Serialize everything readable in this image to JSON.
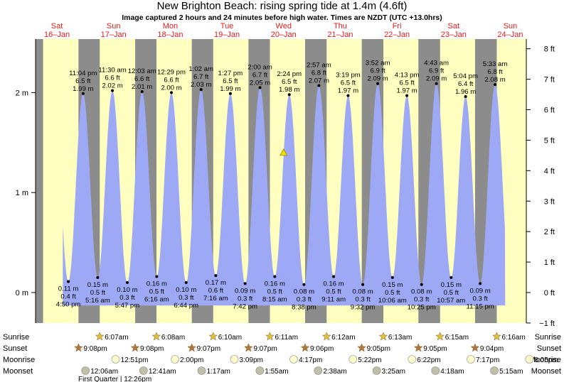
{
  "title": "New Brighton Beach: rising  spring tide at 1.4m (4.6ft)",
  "subtitle": "Image captured 2 hours and 24 minutes before high water. Times are NZDT (UTC +13.0hrs)",
  "colors": {
    "day": "#ffffc0",
    "night": "#8c8c8c",
    "tide": "#9ea9f5",
    "sun_star": "#e0c040",
    "set_star": "#b07840",
    "moon_circle_light": "#ffffd0",
    "moon_circle_dark": "#c0c0a8",
    "day_label": "#e0201e"
  },
  "days": [
    {
      "name": "Sat",
      "date": "16–Jan"
    },
    {
      "name": "Sun",
      "date": "17–Jan"
    },
    {
      "name": "Mon",
      "date": "18–Jan"
    },
    {
      "name": "Tue",
      "date": "19–Jan"
    },
    {
      "name": "Wed",
      "date": "20–Jan"
    },
    {
      "name": "Thu",
      "date": "21–Jan"
    },
    {
      "name": "Fri",
      "date": "22–Jan"
    },
    {
      "name": "Sat",
      "date": "23–Jan"
    },
    {
      "name": "Sun",
      "date": "24–Jan"
    }
  ],
  "chart_data": {
    "type": "area",
    "left_axis_unit": "m",
    "right_axis_unit": "ft",
    "left_ticks": [
      "0 m",
      "1 m",
      "2 m"
    ],
    "right_ticks": [
      "−1 ft",
      "0 ft",
      "1 ft",
      "2 ft",
      "3 ft",
      "4 ft",
      "5 ft",
      "6 ft",
      "7 ft",
      "8 ft"
    ],
    "ylim_m": [
      -0.3,
      2.6
    ],
    "current_marker": {
      "label": "rising tide at 1.4m",
      "height_m": 1.4
    },
    "extremes": [
      {
        "type": "low",
        "time": "4:50 pm",
        "m": "0.11 m",
        "ft": "0.4 ft",
        "height": 0.11
      },
      {
        "type": "high",
        "time": "11:04 pm",
        "m": "1.99 m",
        "ft": "6.5 ft",
        "height": 1.99
      },
      {
        "type": "low",
        "time": "5:16 am",
        "m": "0.15 m",
        "ft": "0.5 ft",
        "height": 0.15
      },
      {
        "type": "high",
        "time": "11:30 am",
        "m": "2.02 m",
        "ft": "6.6 ft",
        "height": 2.02
      },
      {
        "type": "low",
        "time": "5:47 pm",
        "m": "0.10 m",
        "ft": "0.3 ft",
        "height": 0.1
      },
      {
        "type": "high",
        "time": "12:03 am",
        "m": "2.01 m",
        "ft": "6.6 ft",
        "height": 2.01
      },
      {
        "type": "low",
        "time": "6:16 am",
        "m": "0.16 m",
        "ft": "0.5 ft",
        "height": 0.16
      },
      {
        "type": "high",
        "time": "12:29 pm",
        "m": "2.00 m",
        "ft": "6.6 ft",
        "height": 2.0
      },
      {
        "type": "low",
        "time": "6:44 pm",
        "m": "0.10 m",
        "ft": "0.3 ft",
        "height": 0.1
      },
      {
        "type": "high",
        "time": "1:02 am",
        "m": "2.03 m",
        "ft": "6.7 ft",
        "height": 2.03
      },
      {
        "type": "low",
        "time": "7:16 am",
        "m": "0.17 m",
        "ft": "0.6 ft",
        "height": 0.17
      },
      {
        "type": "high",
        "time": "1:27 pm",
        "m": "1.99 m",
        "ft": "6.5 ft",
        "height": 1.99
      },
      {
        "type": "low",
        "time": "7:42 pm",
        "m": "0.09 m",
        "ft": "0.3 ft",
        "height": 0.09
      },
      {
        "type": "high",
        "time": "2:00 am",
        "m": "2.05 m",
        "ft": "6.7 ft",
        "height": 2.05
      },
      {
        "type": "low",
        "time": "8:15 am",
        "m": "0.16 m",
        "ft": "0.5 ft",
        "height": 0.16
      },
      {
        "type": "high",
        "time": "2:24 pm",
        "m": "1.98 m",
        "ft": "6.5 ft",
        "height": 1.98
      },
      {
        "type": "low",
        "time": "8:38 pm",
        "m": "0.08 m",
        "ft": "0.3 ft",
        "height": 0.08
      },
      {
        "type": "high",
        "time": "2:57 am",
        "m": "2.07 m",
        "ft": "6.8 ft",
        "height": 2.07
      },
      {
        "type": "low",
        "time": "9:11 am",
        "m": "0.16 m",
        "ft": "0.5 ft",
        "height": 0.16
      },
      {
        "type": "high",
        "time": "3:19 pm",
        "m": "1.97 m",
        "ft": "6.5 ft",
        "height": 1.97
      },
      {
        "type": "low",
        "time": "9:32 pm",
        "m": "0.08 m",
        "ft": "0.3 ft",
        "height": 0.08
      },
      {
        "type": "high",
        "time": "3:52 am",
        "m": "2.09 m",
        "ft": "6.9 ft",
        "height": 2.09
      },
      {
        "type": "low",
        "time": "10:06 am",
        "m": "0.15 m",
        "ft": "0.5 ft",
        "height": 0.15
      },
      {
        "type": "high",
        "time": "4:13 pm",
        "m": "1.97 m",
        "ft": "6.5 ft",
        "height": 1.97
      },
      {
        "type": "low",
        "time": "10:25 pm",
        "m": "0.08 m",
        "ft": "0.3 ft",
        "height": 0.08
      },
      {
        "type": "high",
        "time": "4:43 am",
        "m": "2.09 m",
        "ft": "6.9 ft",
        "height": 2.09
      },
      {
        "type": "low",
        "time": "10:57 am",
        "m": "0.15 m",
        "ft": "0.5 ft",
        "height": 0.15
      },
      {
        "type": "high",
        "time": "5:04 pm",
        "m": "1.96 m",
        "ft": "6.4 ft",
        "height": 1.96
      },
      {
        "type": "low",
        "time": "11:15 pm",
        "m": "0.09 m",
        "ft": "0.3 ft",
        "height": 0.09
      },
      {
        "type": "high",
        "time": "5:33 am",
        "m": "2.08 m",
        "ft": "6.8 ft",
        "height": 2.08
      }
    ]
  },
  "rows": {
    "labels": [
      "Sunrise",
      "Sunset",
      "Moonrise",
      "Moonset"
    ],
    "sunrise": [
      "6:07am",
      "6:08am",
      "6:10am",
      "6:11am",
      "6:12am",
      "6:13am",
      "6:15am",
      "6:16am"
    ],
    "sunset": [
      "9:08pm",
      "9:08pm",
      "9:07pm",
      "9:07pm",
      "9:06pm",
      "9:05pm",
      "9:05pm",
      "9:04pm"
    ],
    "moonrise": [
      "12:51pm",
      "2:00pm",
      "3:09pm",
      "4:17pm",
      "5:22pm",
      "6:22pm",
      "7:17pm",
      "8:05pm"
    ],
    "moonset": [
      "12:06am",
      "12:41am",
      "1:17am",
      "1:55am",
      "2:38am",
      "3:25am",
      "4:18am",
      "5:15am"
    ],
    "moon_phase": "First Quarter | 12:26pm"
  }
}
